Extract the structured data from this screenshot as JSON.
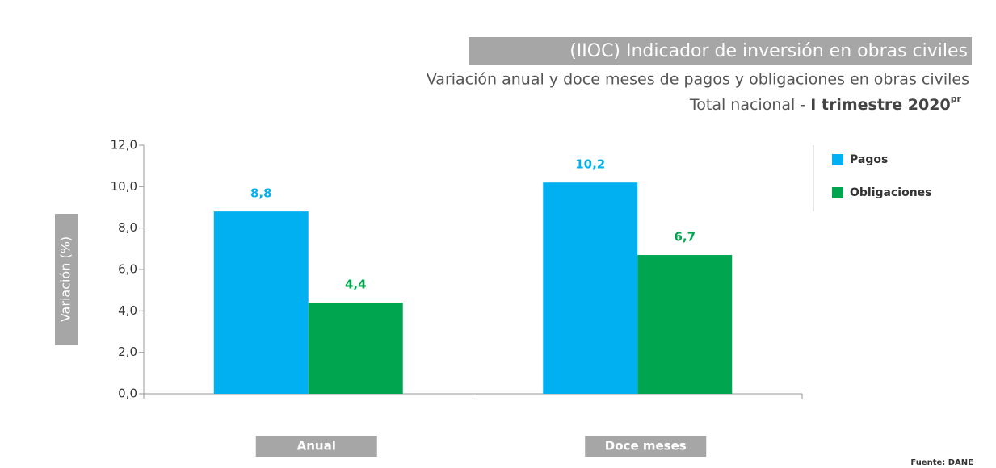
{
  "chart_data": {
    "type": "bar",
    "title": "(IIOC) Indicador de inversión en obras civiles",
    "subtitle": "Variación anual y doce meses de pagos y obligaciones en obras civiles",
    "subtitle_line2": "Total nacional -",
    "subtitle_line2_bold": "I trimestre 2020",
    "subtitle_line2_sup": "pr",
    "y_label": "Variación  (%)",
    "source": "Fuente: DANE",
    "categories": [
      "Anual",
      "Doce meses"
    ],
    "series": [
      {
        "name": "Pagos",
        "color": "#00b0f0",
        "values": [
          8.8,
          10.2
        ],
        "value_labels": [
          "8,8",
          "10,2"
        ]
      },
      {
        "name": "Obligaciones",
        "color": "#00a550",
        "values": [
          4.4,
          6.7
        ],
        "value_labels": [
          "4,4",
          "6,7"
        ]
      }
    ],
    "ylim": [
      0,
      12
    ],
    "yticks": [
      {
        "value": 0,
        "label": "0,0"
      },
      {
        "value": 2,
        "label": "2,0"
      },
      {
        "value": 4,
        "label": "4,0"
      },
      {
        "value": 6,
        "label": "6,0"
      },
      {
        "value": 8,
        "label": "8,0"
      },
      {
        "value": 10,
        "label": "10,0"
      },
      {
        "value": 12,
        "label": "12,0"
      }
    ]
  }
}
